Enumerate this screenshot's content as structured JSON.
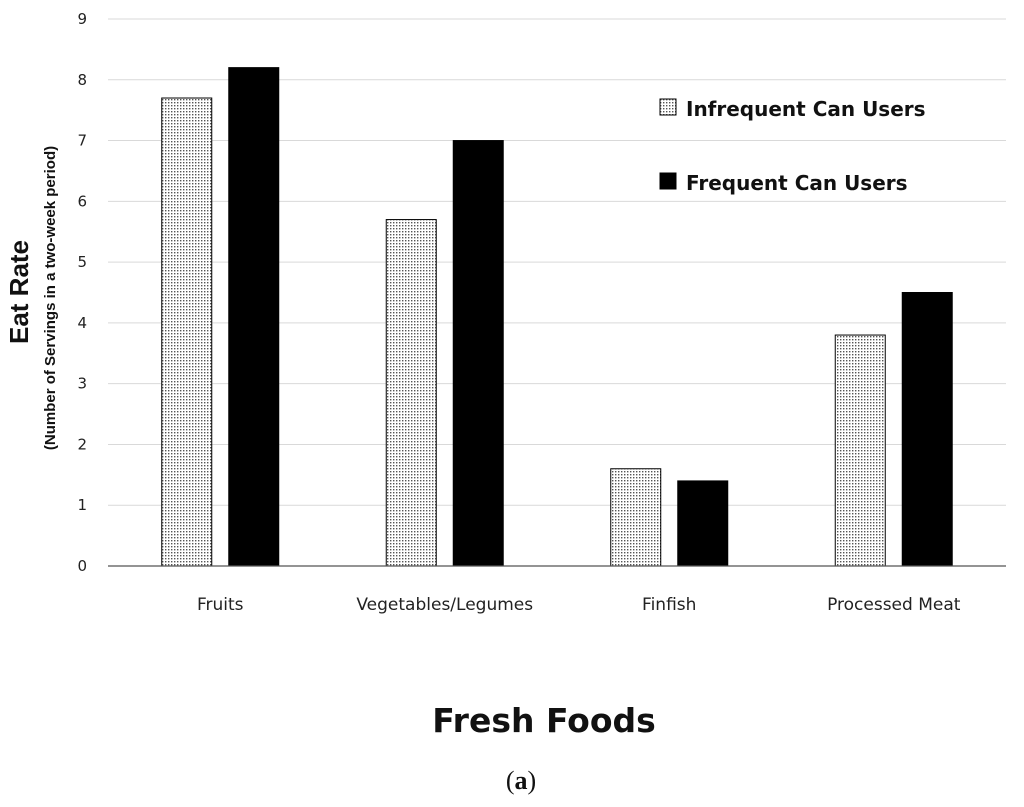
{
  "chart_data": {
    "type": "bar",
    "categories": [
      "Fruits",
      "Vegetables/Legumes",
      "Finfish",
      "Processed Meat"
    ],
    "series": [
      {
        "name": "Infrequent Can Users",
        "values": [
          7.7,
          5.7,
          1.6,
          3.8
        ],
        "fill": "dotted",
        "color": "#ffffff"
      },
      {
        "name": "Frequent Can Users",
        "values": [
          8.2,
          7.0,
          1.4,
          4.5
        ],
        "fill": "solid",
        "color": "#000000"
      }
    ],
    "xlabel": "Fresh Foods",
    "ylabel": "Eat Rate",
    "ylabel_sub": "(Number of Servings in a two-week period)",
    "ylim": [
      0,
      9
    ],
    "yticks": [
      "0",
      "1",
      "2",
      "3",
      "4",
      "5",
      "6",
      "7",
      "8",
      "9"
    ],
    "grid": true,
    "legend_position": "top-right"
  },
  "caption": {
    "open": "(",
    "letter": "a",
    "close": ")"
  }
}
